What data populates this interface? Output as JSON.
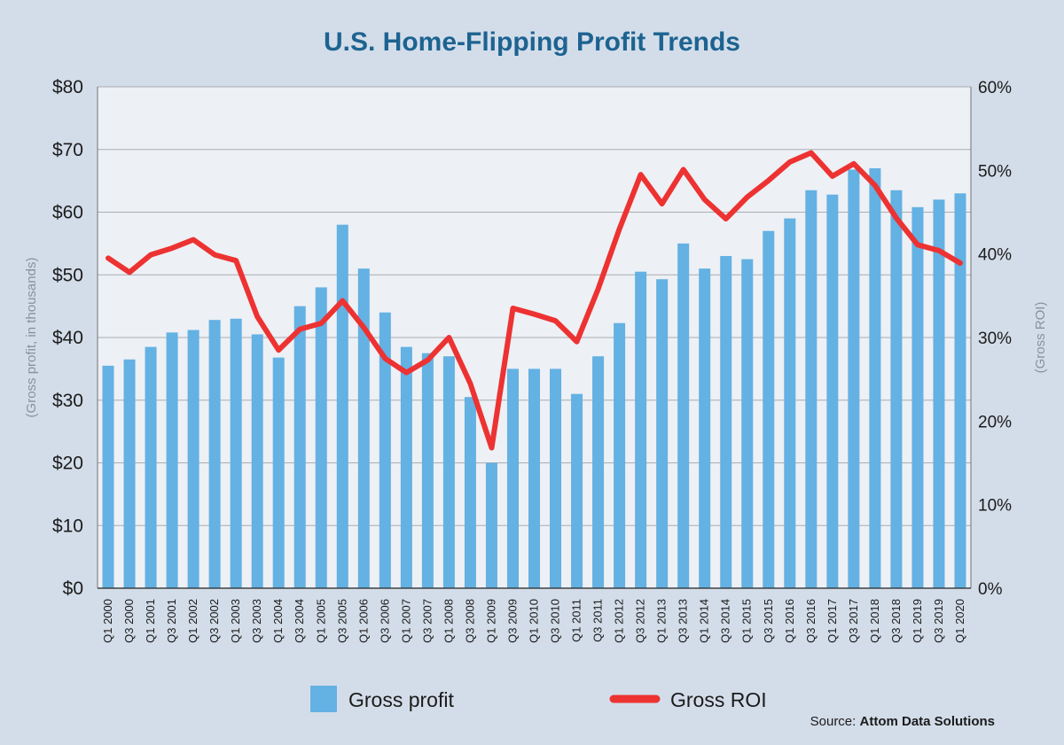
{
  "chart_data": {
    "type": "bar+line",
    "title": "U.S. Home-Flipping Profit Trends",
    "ylabel_left": "(Gross profit, in thousands)",
    "ylabel_right": "(Gross ROI)",
    "ylim_left": [
      0,
      80
    ],
    "ylim_right": [
      0,
      60
    ],
    "yticks_left": [
      "$0",
      "$10",
      "$20",
      "$30",
      "$40",
      "$50",
      "$60",
      "$70",
      "$80"
    ],
    "yticks_right": [
      "0%",
      "10%",
      "20%",
      "30%",
      "40%",
      "50%",
      "60%"
    ],
    "categories": [
      "Q1 2000",
      "Q3 2000",
      "Q1 2001",
      "Q3 2001",
      "Q1 2002",
      "Q3 2002",
      "Q1 2003",
      "Q3 2003",
      "Q1 2004",
      "Q3 2004",
      "Q1 2005",
      "Q3 2005",
      "Q1 2006",
      "Q3 2006",
      "Q1 2007",
      "Q3 2007",
      "Q1 2008",
      "Q3 2008",
      "Q1 2009",
      "Q3 2009",
      "Q1 2010",
      "Q3 2010",
      "Q1 2011",
      "Q3 2011",
      "Q1 2012",
      "Q3 2012",
      "Q1 2013",
      "Q3 2013",
      "Q1 2014",
      "Q3 2014",
      "Q1 2015",
      "Q3 2015",
      "Q1 2016",
      "Q3 2016",
      "Q1 2017",
      "Q3 2017",
      "Q1 2018",
      "Q3 2018",
      "Q1 2019",
      "Q3 2019",
      "Q1 2020"
    ],
    "series": [
      {
        "name": "Gross profit",
        "type": "bar",
        "axis": "left",
        "values": [
          35.5,
          36.5,
          38.5,
          40.8,
          41.2,
          42.8,
          43.0,
          40.5,
          36.8,
          45.0,
          48.0,
          58.0,
          51.0,
          44.0,
          38.5,
          37.5,
          37.0,
          30.5,
          20.0,
          35.0,
          35.0,
          35.0,
          31.0,
          37.0,
          42.3,
          50.5,
          49.3,
          55.0,
          51.0,
          53.0,
          52.5,
          57.0,
          59.0,
          63.5,
          62.8,
          66.8,
          67.0,
          63.5,
          60.8,
          62.0,
          63.0
        ]
      },
      {
        "name": "Gross ROI",
        "type": "line",
        "axis": "right",
        "values": [
          39.5,
          37.8,
          39.9,
          40.7,
          41.7,
          39.9,
          39.2,
          32.5,
          28.5,
          31.0,
          31.7,
          34.4,
          31.2,
          27.5,
          25.8,
          27.3,
          30.0,
          24.5,
          16.8,
          33.5,
          32.8,
          32.0,
          29.5,
          35.8,
          43.0,
          49.5,
          46.0,
          50.1,
          46.5,
          44.2,
          46.8,
          48.8,
          51.0,
          52.1,
          49.3,
          50.8,
          48.2,
          44.3,
          41.1,
          40.4,
          38.9
        ]
      }
    ],
    "legend": {
      "placement": "bottom",
      "items": [
        {
          "label": "Gross profit",
          "color": "#64b1e3"
        },
        {
          "label": "Gross ROI",
          "color": "#ed3232"
        }
      ]
    },
    "grid": true,
    "source_label": "Source:",
    "source_name": "Attom Data Solutions"
  },
  "colors": {
    "background": "#d3dde9",
    "plot_background": "#edf0f4",
    "bar": "#64b1e3",
    "line": "#ed3232",
    "title": "#1d6391",
    "grid": "#a9acb0"
  }
}
